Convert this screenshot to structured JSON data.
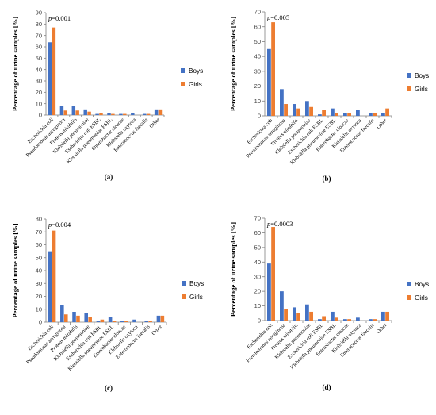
{
  "colors": {
    "boys": "#4472c4",
    "girls": "#ed7d31",
    "axis": "#808080",
    "grid": "#d9d9d9"
  },
  "chart_data": [
    {
      "type": "bar",
      "panel_label": "(a)",
      "ylabel": "Percentage of urine samples [%]",
      "ylim": [
        0,
        90
      ],
      "ystep": 10,
      "grid": false,
      "legend": "right",
      "annotation": "p=0.001",
      "categories": [
        "Escherichia coli",
        "Pseudomonas aeruginosa",
        "Proteus mirabilis",
        "Klebsiella pneumoniae",
        "Escherichia coli ESBL",
        "Klebsiella pneumoniae ESBL",
        "Enterobacter cloacae",
        "Klebsiella oxytoca",
        "Enterococcus faecalis",
        "Other"
      ],
      "series": [
        {
          "name": "Boys",
          "values": [
            64,
            8,
            8,
            5,
            1,
            2,
            1,
            2,
            1,
            5
          ]
        },
        {
          "name": "Girls",
          "values": [
            77,
            4,
            4,
            3,
            2,
            1,
            1,
            0,
            1,
            5
          ]
        }
      ]
    },
    {
      "type": "bar",
      "panel_label": "(b)",
      "ylabel": "Percentage of urine samples [%]",
      "ylim": [
        0,
        70
      ],
      "ystep": 10,
      "grid": false,
      "legend": "right",
      "annotation": "p=0.005",
      "categories": [
        "Escherichia coli",
        "Pseudomonas aeruginosa",
        "Proteus mirabilis",
        "Klebsiella pneumoniae",
        "Escherichia coli ESBL",
        "Klebsiella pneumoniae ESBL",
        "Enterobacter cloacae",
        "Klebsiella oxytoca",
        "Enterococcus faecalis",
        "Other"
      ],
      "series": [
        {
          "name": "Boys",
          "values": [
            45,
            18,
            8,
            10,
            1,
            5,
            2,
            4,
            2,
            2
          ]
        },
        {
          "name": "Girls",
          "values": [
            63,
            8,
            5,
            6,
            4,
            2,
            2,
            0,
            2,
            5
          ]
        }
      ]
    },
    {
      "type": "bar",
      "panel_label": "(c)",
      "ylabel": "Percentage of urine samples [%]",
      "ylim": [
        0,
        80
      ],
      "ystep": 10,
      "grid": false,
      "legend": "right",
      "annotation": "p=0.004",
      "categories": [
        "Escherichia coli",
        "Pseudomonas aeruginosa",
        "Proteus mirabilis",
        "Klebsiella pneumoniae",
        "Escherichia coli ESBL",
        "Klebsiella pneumoniae ESBL",
        "Enterobacter cloacae",
        "Klebsiella oxytoca",
        "Enterococcus faecalis",
        "Other"
      ],
      "series": [
        {
          "name": "Boys",
          "values": [
            55,
            13,
            8,
            7,
            1,
            4,
            1,
            2,
            1,
            5
          ]
        },
        {
          "name": "Girls",
          "values": [
            71,
            6,
            5,
            4,
            2,
            1,
            1,
            0,
            1,
            5
          ]
        }
      ]
    },
    {
      "type": "bar",
      "panel_label": "(d)",
      "ylabel": "Percentage of urine samples [%]",
      "ylim": [
        0,
        70
      ],
      "ystep": 10,
      "grid": false,
      "legend": "right",
      "annotation": "p=0.0003",
      "categories": [
        "Escherichia coli",
        "Pseudomonas aeruginosa",
        "Proteus mirabilis",
        "Klebsiella pneumoniae",
        "Escherichia coli ESBL",
        "Klebsiella pneumoniae ESBL",
        "Enterobacter cloacae",
        "Klebsiella oxytoca",
        "Enterococcus faecalis",
        "Other"
      ],
      "series": [
        {
          "name": "Boys",
          "values": [
            39,
            20,
            9,
            11,
            1,
            6,
            1,
            2,
            1,
            6
          ]
        },
        {
          "name": "Girls",
          "values": [
            64,
            8,
            5,
            6,
            3,
            2,
            1,
            0,
            1,
            6
          ]
        }
      ]
    }
  ]
}
